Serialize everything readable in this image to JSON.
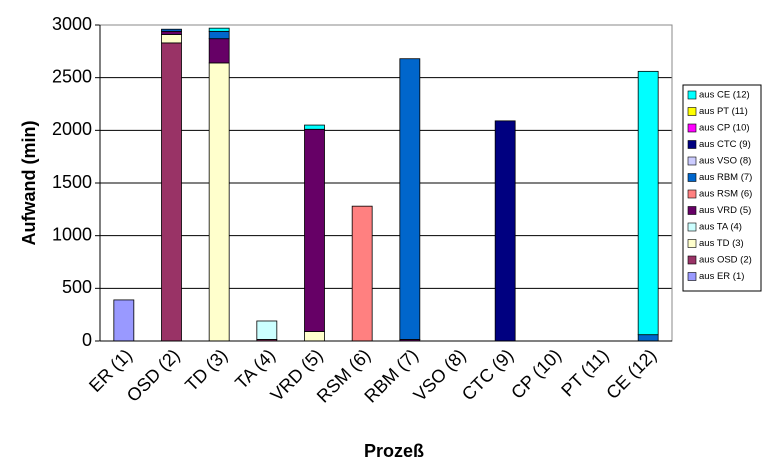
{
  "chart_data": {
    "type": "bar",
    "stacked": true,
    "x_label": "Prozeß",
    "y_label": "Aufwand (min)",
    "categories": [
      "ER (1)",
      "OSD (2)",
      "TD (3)",
      "TA (4)",
      "VRD (5)",
      "RSM (6)",
      "RBM (7)",
      "VSO (8)",
      "CTC (9)",
      "CP (10)",
      "PT (11)",
      "CE (12)"
    ],
    "ylim": [
      0,
      3000
    ],
    "yticks": [
      0,
      500,
      1000,
      1500,
      2000,
      2500,
      3000
    ],
    "grid": true,
    "legend": "right",
    "series": [
      {
        "name": "aus ER (1)",
        "color": "#9999ff",
        "values": [
          390,
          0,
          0,
          0,
          0,
          0,
          0,
          0,
          0,
          0,
          0,
          0
        ]
      },
      {
        "name": "aus OSD (2)",
        "color": "#993366",
        "values": [
          0,
          2830,
          0,
          15,
          0,
          0,
          0,
          0,
          0,
          0,
          0,
          0
        ]
      },
      {
        "name": "aus TD (3)",
        "color": "#ffffcc",
        "values": [
          0,
          80,
          2640,
          0,
          90,
          0,
          0,
          0,
          0,
          0,
          0,
          0
        ]
      },
      {
        "name": "aus TA (4)",
        "color": "#ccffff",
        "values": [
          0,
          0,
          0,
          175,
          0,
          0,
          0,
          0,
          0,
          0,
          0,
          0
        ]
      },
      {
        "name": "aus VRD (5)",
        "color": "#660066",
        "values": [
          0,
          30,
          230,
          0,
          1920,
          0,
          15,
          0,
          0,
          0,
          0,
          0
        ]
      },
      {
        "name": "aus RSM (6)",
        "color": "#ff8080",
        "values": [
          0,
          0,
          0,
          0,
          0,
          1280,
          0,
          0,
          0,
          0,
          0,
          0
        ]
      },
      {
        "name": "aus RBM (7)",
        "color": "#0066cc",
        "values": [
          0,
          20,
          70,
          0,
          0,
          0,
          2665,
          0,
          0,
          0,
          0,
          60
        ]
      },
      {
        "name": "aus VSO (8)",
        "color": "#ccccff",
        "values": [
          0,
          0,
          0,
          0,
          0,
          0,
          0,
          0,
          0,
          0,
          0,
          0
        ]
      },
      {
        "name": "aus CTC (9)",
        "color": "#000080",
        "values": [
          0,
          0,
          0,
          0,
          0,
          0,
          0,
          0,
          2090,
          0,
          0,
          0
        ]
      },
      {
        "name": "aus CP (10)",
        "color": "#ff00ff",
        "values": [
          0,
          0,
          0,
          0,
          0,
          0,
          0,
          0,
          0,
          0,
          0,
          0
        ]
      },
      {
        "name": "aus PT (11)",
        "color": "#ffff00",
        "values": [
          0,
          0,
          0,
          0,
          0,
          0,
          0,
          0,
          0,
          0,
          0,
          0
        ]
      },
      {
        "name": "aus CE (12)",
        "color": "#00ffff",
        "values": [
          0,
          0,
          30,
          0,
          40,
          0,
          0,
          0,
          0,
          0,
          0,
          2500
        ]
      }
    ]
  }
}
